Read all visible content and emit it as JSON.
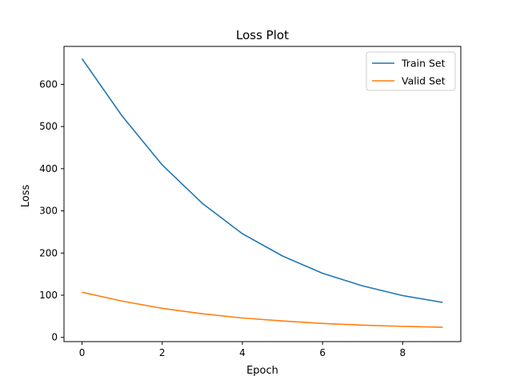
{
  "chart_data": {
    "type": "line",
    "title": "Loss Plot",
    "xlabel": "Epoch",
    "ylabel": "Loss",
    "x": [
      0,
      1,
      2,
      3,
      4,
      5,
      6,
      7,
      8,
      9
    ],
    "xlim": [
      -0.45,
      9.45
    ],
    "ylim": [
      -10,
      690
    ],
    "xticks": [
      0,
      2,
      4,
      6,
      8
    ],
    "yticks": [
      0,
      100,
      200,
      300,
      400,
      500,
      600
    ],
    "grid": false,
    "legend_position": "top-right",
    "series": [
      {
        "name": "Train Set",
        "color": "#1f77b4",
        "values": [
          661,
          525,
          409,
          318,
          246,
          193,
          152,
          122,
          99,
          83
        ]
      },
      {
        "name": "Valid Set",
        "color": "#ff7f0e",
        "values": [
          107,
          86,
          69,
          56,
          46,
          39,
          33,
          29,
          26,
          24
        ]
      }
    ]
  }
}
